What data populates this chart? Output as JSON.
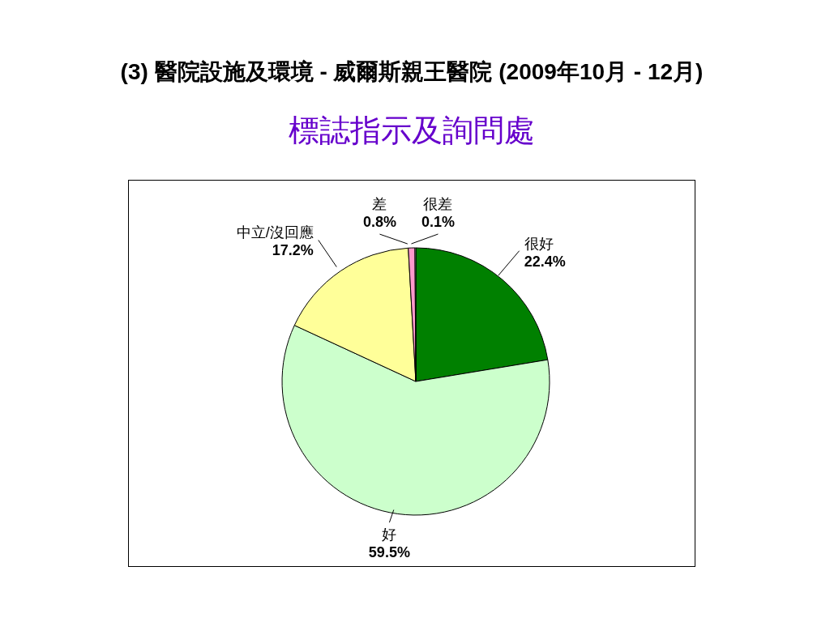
{
  "chart_data": {
    "type": "pie",
    "title": "(3) 醫院設施及環境 - 威爾斯親王醫院 (2009年10月 - 12月)",
    "subtitle": "標誌指示及詢問處",
    "categories": [
      "很好",
      "好",
      "中立/沒回應",
      "差",
      "很差"
    ],
    "values": [
      22.4,
      59.5,
      17.2,
      0.8,
      0.1
    ],
    "colors": [
      "#008000",
      "#ccffcc",
      "#ffff99",
      "#ff99cc",
      "#ffffff"
    ],
    "value_labels": [
      "22.4%",
      "59.5%",
      "17.2%",
      "0.8%",
      "0.1%"
    ]
  }
}
